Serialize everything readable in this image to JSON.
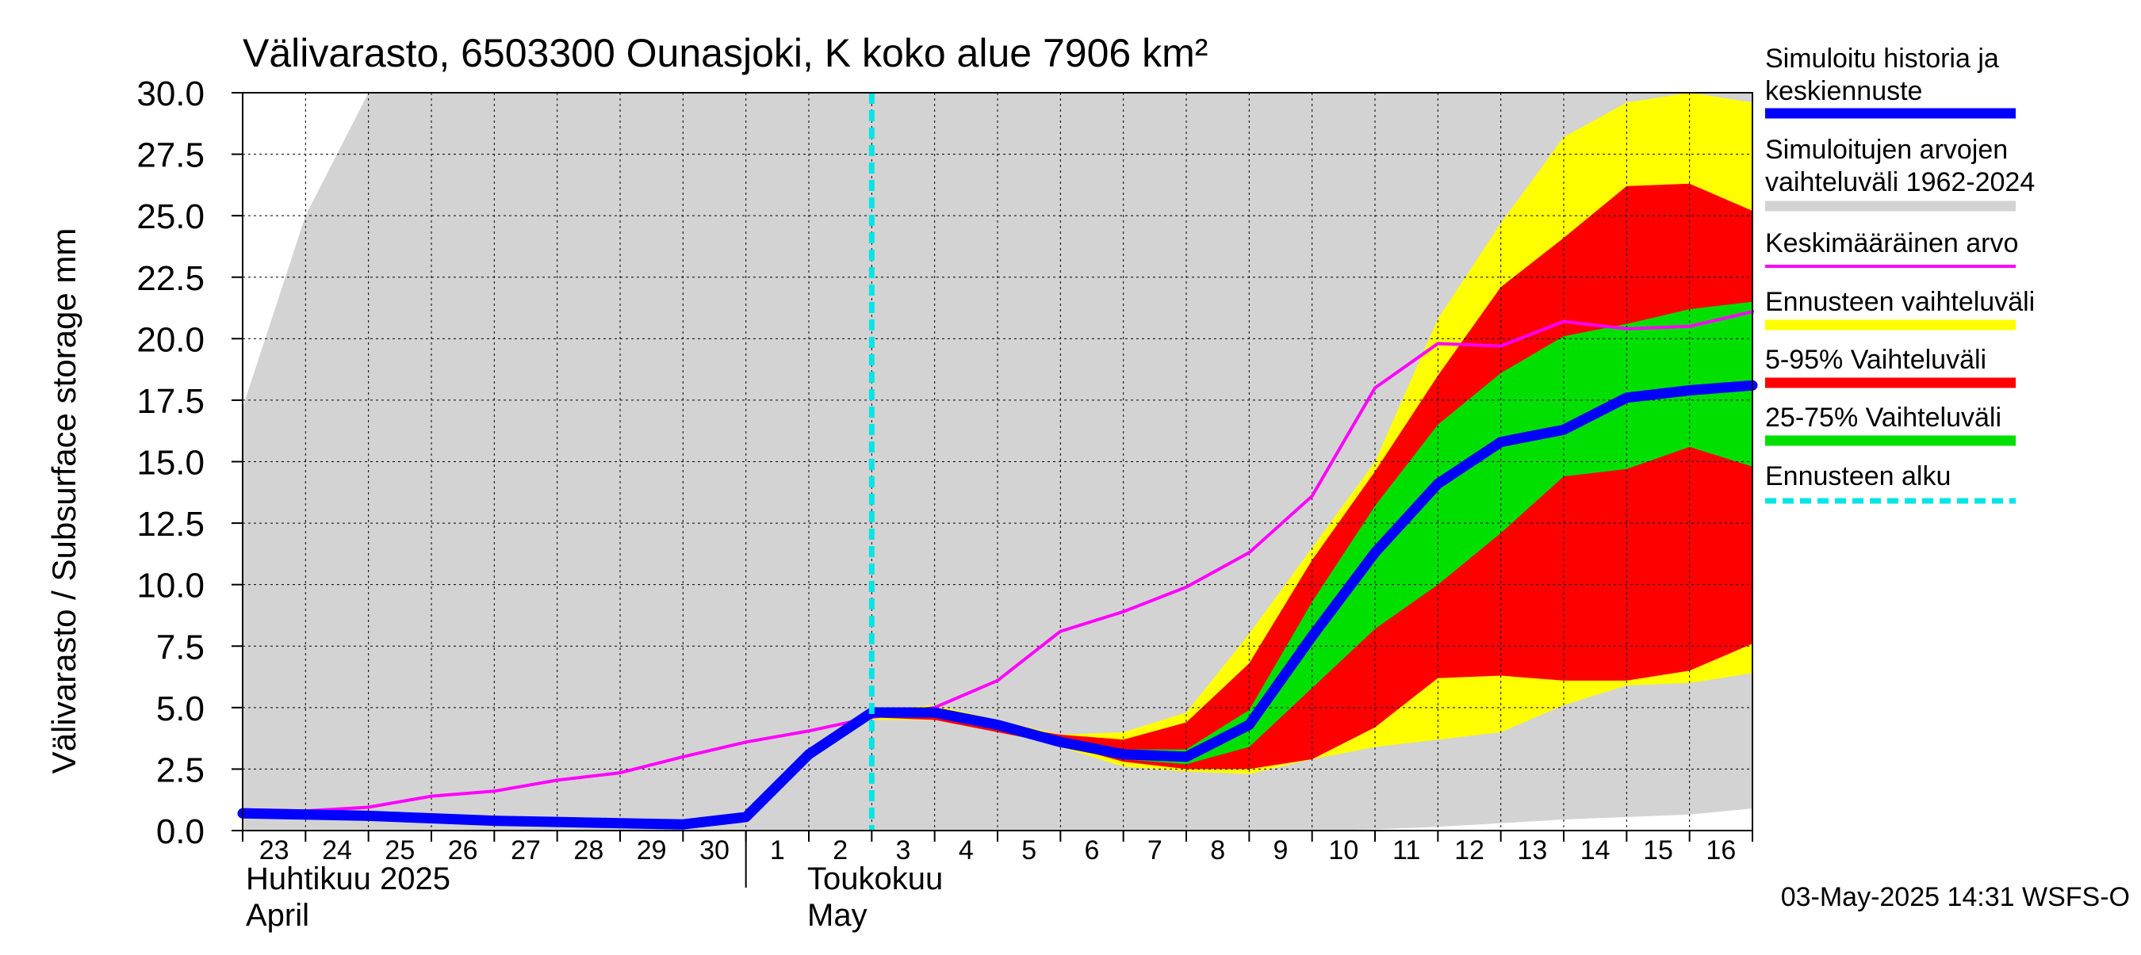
{
  "chart_data": {
    "type": "area",
    "title": "Välivarasto, 6503300 Ounasjoki, K koko alue 7906 km²",
    "ylabel": "Välivarasto / Subsurface storage  mm",
    "ylim": [
      0,
      30
    ],
    "yticks": [
      "0.0",
      "2.5",
      "5.0",
      "7.5",
      "10.0",
      "12.5",
      "15.0",
      "17.5",
      "20.0",
      "22.5",
      "25.0",
      "27.5",
      "30.0"
    ],
    "x_day_range": [
      0,
      24
    ],
    "days": [
      0,
      1,
      2,
      3,
      4,
      5,
      6,
      7,
      8,
      9,
      10,
      11,
      12,
      13,
      14,
      15,
      16,
      17,
      18,
      19,
      20,
      21,
      22,
      23,
      24
    ],
    "day_labels": [
      "23",
      "24",
      "25",
      "26",
      "27",
      "28",
      "29",
      "30",
      "1",
      "2",
      "3",
      "4",
      "5",
      "6",
      "7",
      "8",
      "9",
      "10",
      "11",
      "12",
      "13",
      "14",
      "15",
      "16"
    ],
    "month_labels": [
      {
        "line1": "Huhtikuu  2025",
        "line2": "April",
        "day": 0
      },
      {
        "line1": "Toukokuu",
        "line2": "May",
        "day": 9
      }
    ],
    "month_separator_day": 8,
    "forecast_start_day": 10,
    "footer": "03-May-2025 14:31 WSFS-O",
    "colors": {
      "hist_range": "#d3d3d3",
      "forecast_range": "#ffff00",
      "p5_95": "#ff0000",
      "p25_75": "#00e000",
      "mean": "#ff00ff",
      "sim": "#0000ff",
      "forecast_start": "#00e5e5"
    },
    "series": {
      "hist_max_x": [
        0,
        1,
        2,
        24
      ],
      "hist_max": [
        17.2,
        25.0,
        30.0,
        30.0
      ],
      "hist_min_x": [
        0,
        1,
        2,
        3,
        4,
        5,
        6,
        7,
        8,
        9,
        10,
        11,
        12,
        13,
        14,
        15,
        16,
        17,
        18,
        19,
        20,
        21,
        22,
        23,
        24
      ],
      "hist_min": [
        0.0,
        0.0,
        0.0,
        0.0,
        0.0,
        0.0,
        0.0,
        0.0,
        0.0,
        0.0,
        0.0,
        0.0,
        0.0,
        0.0,
        0.0,
        0.0,
        0.0,
        0.0,
        0.05,
        0.15,
        0.3,
        0.45,
        0.55,
        0.65,
        0.9
      ],
      "forecast_x": [
        10,
        11,
        12,
        13,
        14,
        15,
        16,
        17,
        18,
        19,
        20,
        21,
        22,
        23,
        24
      ],
      "fc_max": [
        4.9,
        5.1,
        4.5,
        3.9,
        4.0,
        4.8,
        8.0,
        11.5,
        15.0,
        20.8,
        24.7,
        28.2,
        29.6,
        30.0,
        29.6
      ],
      "fc_min": [
        4.5,
        4.5,
        4.1,
        3.4,
        2.6,
        2.4,
        2.3,
        2.9,
        3.4,
        3.7,
        4.0,
        5.1,
        5.9,
        6.0,
        6.4
      ],
      "p95": [
        4.8,
        4.8,
        4.3,
        3.9,
        3.7,
        4.4,
        6.8,
        11.0,
        14.6,
        18.5,
        22.1,
        24.1,
        26.2,
        26.3,
        25.2
      ],
      "p5": [
        4.6,
        4.5,
        4.0,
        3.5,
        2.8,
        2.5,
        2.5,
        2.9,
        4.2,
        6.2,
        6.3,
        6.1,
        6.1,
        6.5,
        7.6
      ],
      "p75": [
        4.75,
        4.7,
        4.3,
        3.7,
        3.3,
        3.3,
        4.9,
        9.3,
        13.2,
        16.5,
        18.6,
        20.1,
        20.6,
        21.2,
        21.5
      ],
      "p25": [
        4.65,
        4.6,
        4.1,
        3.6,
        2.9,
        2.7,
        3.4,
        5.8,
        8.2,
        10.0,
        12.1,
        14.4,
        14.7,
        15.6,
        14.8
      ],
      "mean_x": [
        0,
        1,
        2,
        3,
        4,
        5,
        6,
        7,
        8,
        9,
        10,
        11,
        12,
        13,
        14,
        15,
        16,
        17,
        18,
        19,
        20,
        21,
        22,
        23,
        24
      ],
      "mean": [
        0.85,
        0.8,
        0.95,
        1.4,
        1.6,
        2.05,
        2.35,
        3.0,
        3.6,
        4.05,
        4.6,
        5.0,
        6.1,
        8.1,
        8.9,
        9.9,
        11.3,
        13.6,
        18.0,
        19.8,
        19.7,
        20.7,
        20.4,
        20.5,
        21.1
      ],
      "sim_x": [
        0,
        1,
        2,
        3,
        4,
        5,
        6,
        7,
        8,
        9,
        10,
        11,
        12,
        13,
        14,
        15,
        16,
        17,
        18,
        19,
        20,
        21,
        22,
        23,
        24
      ],
      "sim": [
        0.7,
        0.65,
        0.6,
        0.5,
        0.4,
        0.35,
        0.3,
        0.25,
        0.55,
        3.1,
        4.8,
        4.8,
        4.3,
        3.6,
        3.1,
        3.0,
        4.3,
        7.9,
        11.3,
        14.1,
        15.8,
        16.3,
        17.6,
        17.9,
        18.1
      ]
    },
    "legend": [
      {
        "label1": "Simuloitu historia ja",
        "label2": "keskiennuste",
        "kind": "sim"
      },
      {
        "label1": "Simuloitujen arvojen",
        "label2": "vaihteluväli 1962-2024",
        "kind": "hist"
      },
      {
        "label1": "Keskimääräinen arvo",
        "label2": "",
        "kind": "mean"
      },
      {
        "label1": "Ennusteen vaihteluväli",
        "label2": "",
        "kind": "fc"
      },
      {
        "label1": "5-95% Vaihteluväli",
        "label2": "",
        "kind": "p595"
      },
      {
        "label1": "25-75% Vaihteluväli",
        "label2": "",
        "kind": "p2575"
      },
      {
        "label1": "Ennusteen alku",
        "label2": "",
        "kind": "start"
      }
    ]
  }
}
